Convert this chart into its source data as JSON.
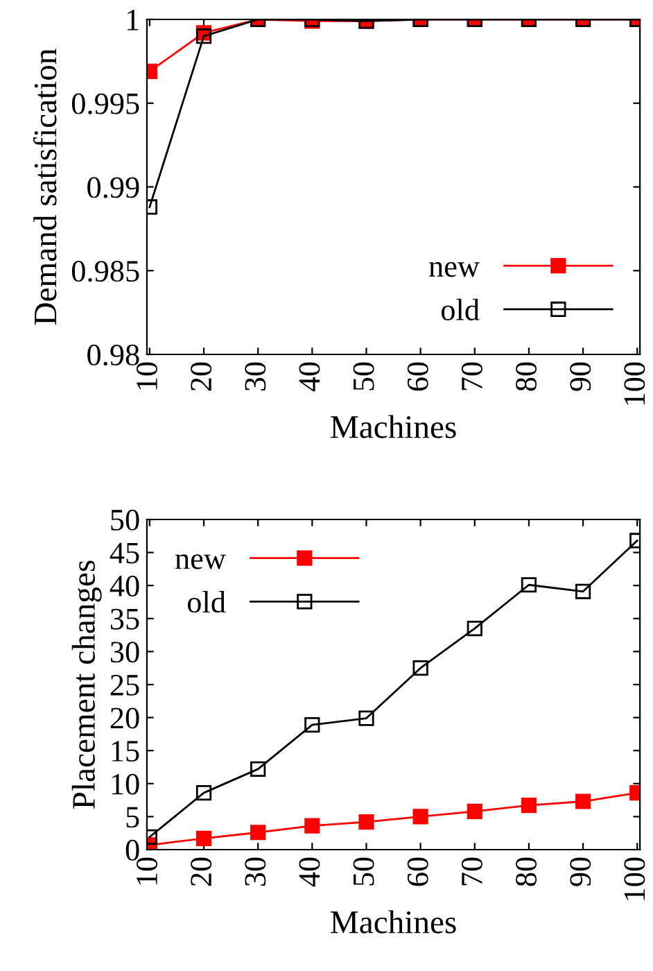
{
  "chart_data": [
    {
      "type": "line",
      "xlabel": "Machines",
      "ylabel": "Demand satisfication",
      "categories": [
        "10",
        "20",
        "30",
        "40",
        "50",
        "60",
        "70",
        "80",
        "90",
        "100"
      ],
      "ylim": [
        0.98,
        1
      ],
      "yticks": [
        0.98,
        0.985,
        0.99,
        0.995,
        1
      ],
      "legend": "bottom right",
      "marker": "square",
      "grid": false,
      "series": [
        {
          "name": "new",
          "color": "#ff0000",
          "values": [
            0.9969,
            0.9992,
            1,
            0.9999,
            0.9999,
            1,
            1,
            1,
            1,
            1
          ]
        },
        {
          "name": "old",
          "color": "#000000",
          "values": [
            0.9888,
            0.999,
            1,
            1,
            0.9999,
            1,
            1,
            1,
            1,
            1
          ]
        }
      ]
    },
    {
      "type": "line",
      "xlabel": "Machines",
      "ylabel": "Placement changes",
      "categories": [
        "10",
        "20",
        "30",
        "40",
        "50",
        "60",
        "70",
        "80",
        "90",
        "100"
      ],
      "ylim": [
        0,
        50
      ],
      "yticks": [
        0,
        5,
        10,
        15,
        20,
        25,
        30,
        35,
        40,
        45,
        50
      ],
      "legend": "top left",
      "marker": "square",
      "grid": false,
      "series": [
        {
          "name": "new",
          "color": "#ff0000",
          "values": [
            0.7,
            1.7,
            2.6,
            3.6,
            4.2,
            5.0,
            5.8,
            6.7,
            7.3,
            8.6
          ]
        },
        {
          "name": "old",
          "color": "#000000",
          "values": [
            1.9,
            8.6,
            12.2,
            18.9,
            19.9,
            27.5,
            33.5,
            40.1,
            39.1,
            46.8
          ]
        }
      ]
    }
  ]
}
